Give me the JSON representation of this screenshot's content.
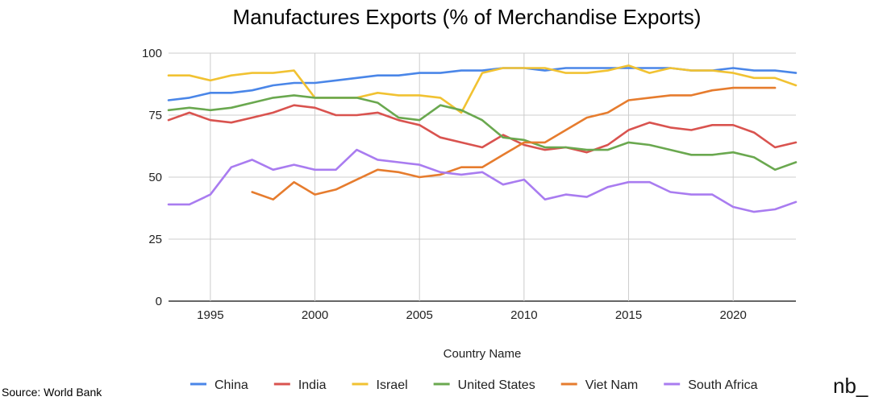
{
  "chart_data": {
    "type": "line",
    "title": "Manufactures Exports (% of Merchandise Exports)",
    "xlabel": "Country Name",
    "ylabel": "",
    "xlim": [
      1993,
      2023
    ],
    "ylim": [
      0,
      100
    ],
    "x_ticks": [
      1995,
      2000,
      2005,
      2010,
      2015,
      2020
    ],
    "y_ticks": [
      0,
      25,
      50,
      75,
      100
    ],
    "grid": true,
    "legend_position": "bottom",
    "x": [
      1993,
      1994,
      1995,
      1996,
      1997,
      1998,
      1999,
      2000,
      2001,
      2002,
      2003,
      2004,
      2005,
      2006,
      2007,
      2008,
      2009,
      2010,
      2011,
      2012,
      2013,
      2014,
      2015,
      2016,
      2017,
      2018,
      2019,
      2020,
      2021,
      2022,
      2023
    ],
    "series": [
      {
        "name": "China",
        "color": "#4a86e8",
        "values": [
          81,
          82,
          84,
          84,
          85,
          87,
          88,
          88,
          89,
          90,
          91,
          91,
          92,
          92,
          93,
          93,
          94,
          94,
          93,
          94,
          94,
          94,
          94,
          94,
          94,
          93,
          93,
          94,
          93,
          93,
          92
        ]
      },
      {
        "name": "India",
        "color": "#d9534f",
        "values": [
          73,
          76,
          73,
          72,
          74,
          76,
          79,
          78,
          75,
          75,
          76,
          73,
          71,
          66,
          64,
          62,
          67,
          63,
          61,
          62,
          60,
          63,
          69,
          72,
          70,
          69,
          71,
          71,
          68,
          62,
          64
        ]
      },
      {
        "name": "Israel",
        "color": "#f1c232",
        "values": [
          91,
          91,
          89,
          91,
          92,
          92,
          93,
          82,
          82,
          82,
          84,
          83,
          83,
          82,
          76,
          92,
          94,
          94,
          94,
          92,
          92,
          93,
          95,
          92,
          94,
          93,
          93,
          92,
          90,
          90,
          87
        ]
      },
      {
        "name": "United States",
        "color": "#6aa84f",
        "values": [
          77,
          78,
          77,
          78,
          80,
          82,
          83,
          82,
          82,
          82,
          80,
          74,
          73,
          79,
          77,
          73,
          66,
          65,
          62,
          62,
          61,
          61,
          64,
          63,
          61,
          59,
          59,
          60,
          58,
          53,
          56
        ]
      },
      {
        "name": "Viet Nam",
        "color": "#e67c2e",
        "values": [
          null,
          null,
          null,
          null,
          44,
          41,
          48,
          43,
          45,
          49,
          53,
          52,
          50,
          51,
          54,
          54,
          59,
          64,
          64,
          69,
          74,
          76,
          81,
          82,
          83,
          83,
          85,
          86,
          86,
          86,
          null
        ]
      },
      {
        "name": "South Africa",
        "color": "#a97cf0",
        "values": [
          39,
          39,
          43,
          54,
          57,
          53,
          55,
          53,
          53,
          61,
          57,
          56,
          55,
          52,
          51,
          52,
          47,
          49,
          41,
          43,
          42,
          46,
          48,
          48,
          44,
          43,
          43,
          38,
          36,
          37,
          40
        ]
      }
    ],
    "footnote": "Source: World Bank",
    "brand": "nb_"
  }
}
